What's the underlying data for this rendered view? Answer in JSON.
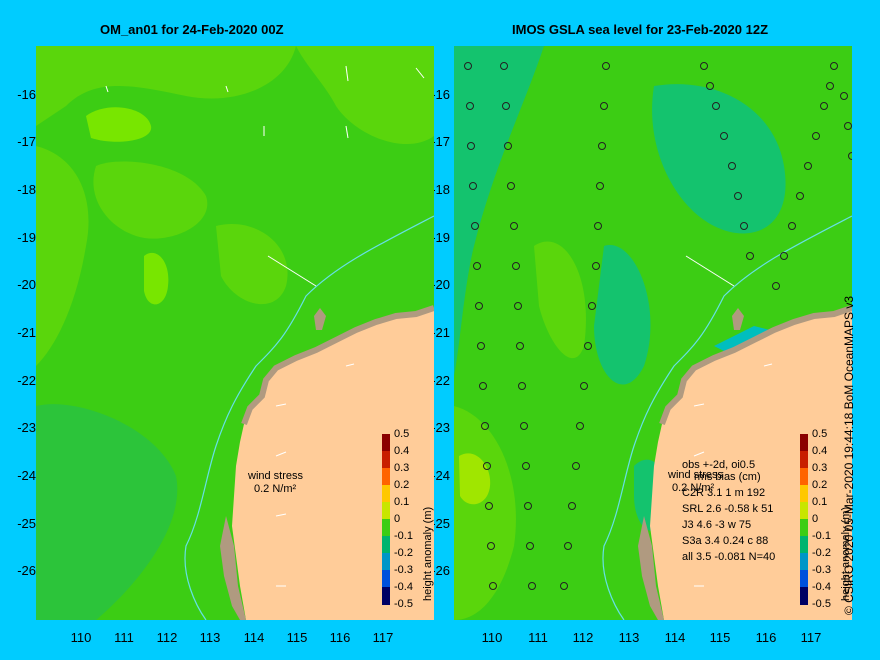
{
  "left_panel": {
    "title": "OM_an01 for 24-Feb-2020 00Z",
    "wind_label_line1": "wind stress",
    "wind_label_line2": "0.2 N/m²"
  },
  "right_panel": {
    "title": "IMOS GSLA sea level  for 23-Feb-2020 12Z",
    "wind_label_line1": "wind stress",
    "wind_label_line2": "0.2 N/m²",
    "stats_header1": "obs +-2d, oi0.5",
    "stats_header2": "rms bias (cm)",
    "stats_rows": [
      "C2R   3.1 1 m 192",
      "SRL   2.6 -0.58 k 51",
      "J3    4.6 -3 w 75",
      "S3a   3.4 0.24 c 88",
      "all   3.5 -0.081 N=40"
    ]
  },
  "axes": {
    "y_ticks": [
      "-16",
      "-17",
      "-18",
      "-19",
      "-20",
      "-21",
      "-22",
      "-23",
      "-24",
      "-25",
      "-26"
    ],
    "x_ticks": [
      "110",
      "111",
      "112",
      "113",
      "114",
      "115",
      "116",
      "117"
    ]
  },
  "colorbar": {
    "label": "height anomaly (m)",
    "ticks": [
      "0.5",
      "0.4",
      "0.3",
      "0.2",
      "0.1",
      "0",
      "-0.1",
      "-0.2",
      "-0.3",
      "-0.4",
      "-0.5"
    ],
    "colors": [
      "#8b0000",
      "#c81e00",
      "#ff6400",
      "#ffc800",
      "#c8e600",
      "#3ccd14",
      "#00b46e",
      "#0096c8",
      "#0050dc",
      "#0014b4",
      "#000064"
    ]
  },
  "credit": "© CSIRO 2020   05-Mar-2020 19:44:18 BoM OceanMAPS v3",
  "colors": {
    "background": "#00ccff",
    "land": "#ffcc99",
    "land_edge": "#b09a80",
    "sea_base": "#3ccd14",
    "sea_light": "#78e600",
    "sea_teal": "#14c36e",
    "sea_cyan": "#00bebe"
  }
}
